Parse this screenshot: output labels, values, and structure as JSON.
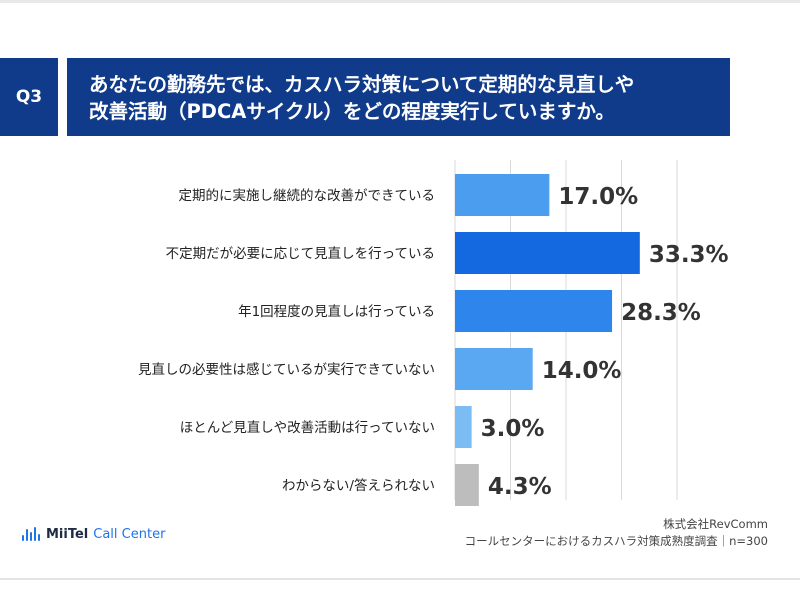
{
  "question": {
    "badge": "Q3",
    "line1": "あなたの勤務先では、カスハラ対策について定期的な見直しや",
    "line2": "改善活動（PDCAサイクル）をどの程度実行していますか。"
  },
  "chart_data": {
    "type": "bar",
    "orientation": "horizontal",
    "categories": [
      "定期的に実施し継続的な改善ができている",
      "不定期だが必要に応じて見直しを行っている",
      "年1回程度の見直しは行っている",
      "見直しの必要性は感じているが実行できていない",
      "ほとんど見直しや改善活動は行っていない",
      "わからない/答えられない"
    ],
    "values": [
      17.0,
      33.3,
      28.3,
      14.0,
      3.0,
      4.3
    ],
    "labels": [
      "17.0%",
      "33.3%",
      "28.3%",
      "14.0%",
      "3.0%",
      "4.3%"
    ],
    "colors": [
      "#4b9df0",
      "#1569e0",
      "#2e86ec",
      "#5aa7f2",
      "#7cbcf5",
      "#bdbdbd"
    ],
    "xlim": [
      0,
      40
    ],
    "grid": true
  },
  "footer": {
    "logo_brand": "MiiTel",
    "logo_sub": "Call Center",
    "source_line1": "株式会社RevComm",
    "source_line2": "コールセンターにおけるカスハラ対策成熟度調査｜n=300"
  }
}
